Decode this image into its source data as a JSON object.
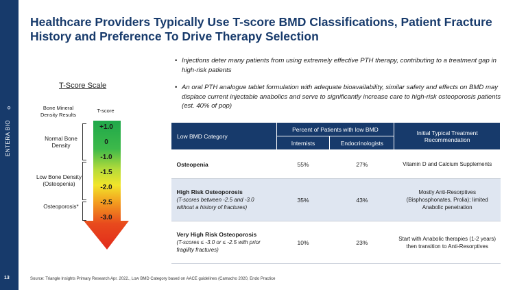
{
  "sidebar": {
    "brand_name": "ENTERA BIO",
    "page_number": "13",
    "logo_icon": "swirl-icon"
  },
  "title": "Healthcare Providers Typically Use T-score BMD Classifications, Patient Fracture History and Preference To Drive Therapy Selection",
  "bullets": [
    "Injections deter many patients from using extremely effective PTH therapy, contributing to a treatment gap in high-risk patients",
    "An oral PTH analogue tablet formulation with adequate bioavailability, similar safety and effects on BMD may displace current injectable anabolics and serve to significantly increase care to high-risk osteoporosis patients (est. 40% of pop)"
  ],
  "scale": {
    "title": "T-Score Scale",
    "col_results": "Bone Mineral Density Results",
    "col_tscore": "T-score",
    "labels": {
      "normal": "Normal Bone Density",
      "low": "Low Bone Density (Osteopenia)",
      "osteoporosis": "Osteoporosis*"
    },
    "values": [
      "+1.0",
      "0",
      "-1.0",
      "-1.5",
      "-2.0",
      "-2.5",
      "-3.0"
    ],
    "colors": {
      "green": "#1fa84a",
      "yellow": "#f2e52a",
      "orange": "#f39a1f",
      "red": "#e22a1a"
    }
  },
  "table": {
    "headers": {
      "category": "Low BMD Category",
      "percent_group": "Percent of Patients with low BMD",
      "internists": "Internists",
      "endocrinologists": "Endocrinologists",
      "recommendation": "Initial Typical Treatment Recommendation"
    },
    "rows": [
      {
        "name": "Osteopenia",
        "sub": "",
        "internists": "55%",
        "endocrinologists": "27%",
        "recommendation": "Vitamin D and Calcium Supplements"
      },
      {
        "name": "High Risk Osteoporosis",
        "sub": "(T-scores between -2.5 and -3.0 without a history of fractures)",
        "internists": "35%",
        "endocrinologists": "43%",
        "recommendation": "Mostly Anti-Resorptives (Bisphosphonates, Prolia); limited Anabolic penetration"
      },
      {
        "name": "Very High Risk Osteoporosis",
        "sub": "(T-scores ≤ -3.0 or ≤ -2.5 with prior fragility fractures)",
        "internists": "10%",
        "endocrinologists": "23%",
        "recommendation": "Start with Anabolic therapies (1-2 years) then transition to Anti-Resorptives"
      }
    ]
  },
  "source": "Source: Triangle Insights Primary Research Apr. 2022., Low BMD Category based on AACE guidelines (Camacho 2020, Endo Practice"
}
